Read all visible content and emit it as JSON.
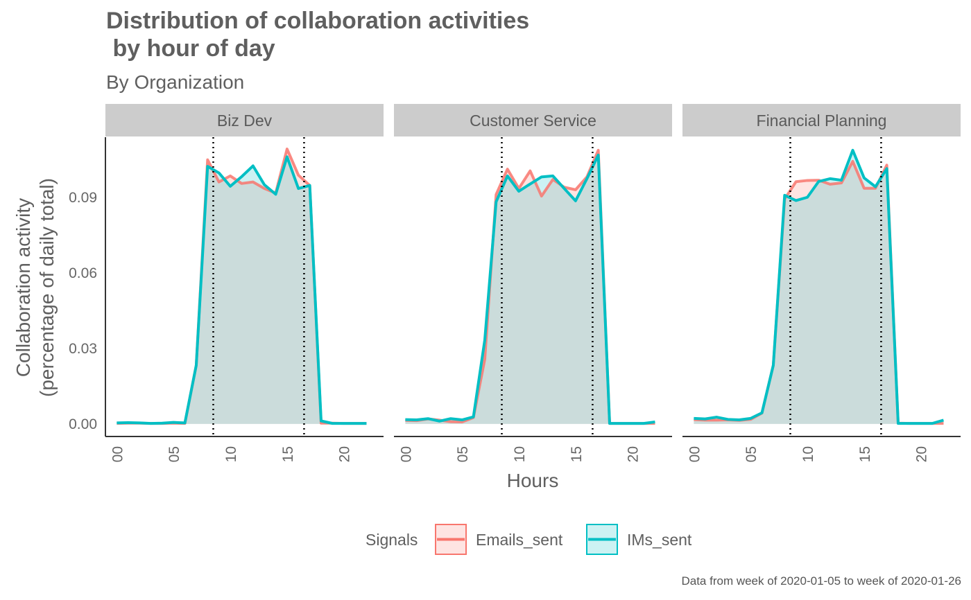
{
  "chart_data": {
    "type": "area",
    "title_line1": "Distribution of collaboration activities",
    "title_line2": " by hour of day",
    "subtitle": "By Organization",
    "xlabel": "Hours",
    "ylabel_line1": "Collaboration activity",
    "ylabel_line2": "(percentage of daily total)",
    "caption": "Data from week of 2020-01-05 to week of 2020-01-26",
    "xlim": [
      -1,
      23.5
    ],
    "ylim": [
      -0.005,
      0.114
    ],
    "x_ticks": [
      "00",
      "05",
      "10",
      "15",
      "20"
    ],
    "x_tick_values": [
      0,
      5,
      10,
      15,
      20
    ],
    "y_ticks": [
      "0.00",
      "0.03",
      "0.06",
      "0.09"
    ],
    "y_tick_values": [
      0,
      0.03,
      0.06,
      0.09
    ],
    "legend": {
      "title": "Signals",
      "position": "bottom",
      "items": [
        {
          "label": "Emails_sent",
          "color": "#F8766D"
        },
        {
          "label": "IMs_sent",
          "color": "#00BFC4"
        }
      ]
    },
    "reference_lines": [
      8.5,
      16.5
    ],
    "hours": [
      0,
      1,
      2,
      3,
      4,
      5,
      6,
      7,
      8,
      9,
      10,
      11,
      12,
      13,
      14,
      15,
      16,
      17,
      18,
      19,
      20,
      21,
      22
    ],
    "facets": [
      {
        "name": "Biz Dev",
        "series": [
          {
            "name": "Emails_sent",
            "values": [
              0.0002,
              0.0003,
              0.0003,
              0.0002,
              0.0002,
              0.0003,
              0.0002,
              0.0233,
              0.105,
              0.0962,
              0.0986,
              0.0956,
              0.0962,
              0.0936,
              0.0918,
              0.1093,
              0.0989,
              0.0948,
              0.0003,
              0.0003,
              0.0002,
              0.0002,
              0.0002
            ]
          },
          {
            "name": "IMs_sent",
            "values": [
              0.0004,
              0.0005,
              0.0004,
              0.0002,
              0.0003,
              0.0006,
              0.0004,
              0.0233,
              0.1024,
              0.0998,
              0.0945,
              0.0983,
              0.1026,
              0.0951,
              0.0913,
              0.1062,
              0.0936,
              0.0948,
              0.0012,
              0.0002,
              0.0002,
              0.0002,
              0.0002
            ]
          }
        ]
      },
      {
        "name": "Customer Service",
        "series": [
          {
            "name": "Emails_sent",
            "values": [
              0.0014,
              0.0013,
              0.002,
              0.0015,
              0.0009,
              0.0008,
              0.0025,
              0.0257,
              0.0912,
              0.1013,
              0.0936,
              0.1006,
              0.0906,
              0.0972,
              0.0941,
              0.0931,
              0.0982,
              0.1088,
              0.0002,
              0.0002,
              0.0002,
              0.0002,
              0.0002
            ]
          },
          {
            "name": "IMs_sent",
            "values": [
              0.0017,
              0.0016,
              0.0021,
              0.0011,
              0.0021,
              0.0016,
              0.0028,
              0.0333,
              0.0883,
              0.0986,
              0.0925,
              0.0954,
              0.0982,
              0.0986,
              0.0936,
              0.0887,
              0.0975,
              0.1069,
              0.0002,
              0.0002,
              0.0002,
              0.0002,
              0.0008
            ]
          }
        ]
      },
      {
        "name": "Financial Planning",
        "series": [
          {
            "name": "Emails_sent",
            "values": [
              0.0017,
              0.0015,
              0.0015,
              0.0016,
              0.0014,
              0.0018,
              0.0043,
              0.0233,
              0.0894,
              0.0963,
              0.0968,
              0.0969,
              0.0953,
              0.0958,
              0.1044,
              0.0937,
              0.0937,
              0.1029,
              0.0003,
              0.0002,
              0.0002,
              0.0002,
              0.0002
            ]
          },
          {
            "name": "IMs_sent",
            "values": [
              0.0022,
              0.002,
              0.0027,
              0.0018,
              0.0016,
              0.0022,
              0.0044,
              0.0233,
              0.0909,
              0.0888,
              0.0901,
              0.0964,
              0.0975,
              0.0969,
              0.1088,
              0.0978,
              0.0943,
              0.1015,
              0.0002,
              0.0002,
              0.0002,
              0.0002,
              0.0015
            ]
          }
        ]
      }
    ]
  }
}
